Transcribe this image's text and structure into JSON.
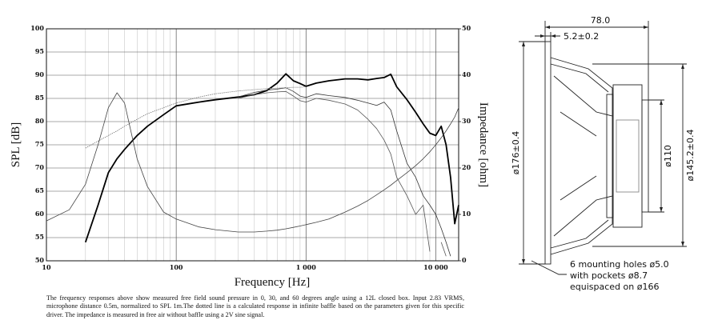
{
  "chart_data": {
    "type": "line",
    "xlabel": "Frequency [Hz]",
    "ylabel": "SPL [dB]",
    "y2label": "Impedance [ohm]",
    "log_x": true,
    "grid": true,
    "xlim": [
      10,
      15000
    ],
    "xticks": [
      10,
      100,
      {
        "value": 1000,
        "label": "1 000"
      },
      {
        "value": 10000,
        "label": "10 000"
      }
    ],
    "xminorticks": [
      20,
      30,
      40,
      50,
      60,
      70,
      80,
      90,
      200,
      300,
      400,
      500,
      600,
      700,
      800,
      900,
      2000,
      3000,
      4000,
      5000,
      6000,
      7000,
      8000,
      9000
    ],
    "ylim": [
      50,
      100
    ],
    "yticks": [
      50,
      55,
      60,
      65,
      70,
      75,
      80,
      85,
      90,
      95,
      100
    ],
    "y2lim": [
      0,
      50
    ],
    "y2ticks": [
      0,
      10,
      20,
      30,
      40,
      50
    ],
    "x": [
      10,
      15,
      20,
      25,
      30,
      35,
      40,
      50,
      60,
      80,
      100,
      150,
      200,
      300,
      400,
      500,
      600,
      700,
      800,
      900,
      1000,
      1200,
      1500,
      2000,
      2500,
      3000,
      3500,
      4000,
      4500,
      5000,
      6000,
      7000,
      8000,
      9000,
      10000,
      11000,
      12000,
      13000,
      14000,
      15000
    ],
    "series": [
      {
        "color": "#000000",
        "width": 1.8,
        "values": [
          null,
          null,
          54,
          62,
          69,
          72,
          74,
          77,
          79,
          81.5,
          83.4,
          84.2,
          84.7,
          85.3,
          85.8,
          86.7,
          88.3,
          90.3,
          88.8,
          88.2,
          87.6,
          88.3,
          88.8,
          89.2,
          89.2,
          89,
          89.3,
          89.5,
          90.2,
          87.5,
          84.7,
          82,
          79.5,
          77.5,
          77,
          79,
          75,
          68,
          58,
          62
        ]
      },
      {
        "color": "#333333",
        "width": 0.8,
        "values": [
          null,
          null,
          null,
          null,
          null,
          null,
          null,
          null,
          null,
          null,
          null,
          null,
          null,
          85.3,
          86.3,
          86.8,
          87,
          87.3,
          86.5,
          85.5,
          85.2,
          86,
          85.6,
          85.2,
          84.6,
          84,
          83.5,
          84.2,
          82.5,
          78,
          71,
          68,
          64,
          62,
          60,
          57,
          54,
          51,
          null,
          null
        ]
      },
      {
        "color": "#555555",
        "width": 0.8,
        "values": [
          null,
          null,
          null,
          null,
          null,
          null,
          null,
          null,
          null,
          null,
          null,
          null,
          null,
          85,
          85.8,
          86.2,
          86.4,
          86.5,
          85.5,
          84.5,
          84.2,
          85,
          84.6,
          83.8,
          82.5,
          80.5,
          78.5,
          76,
          73,
          68,
          64,
          60,
          62,
          52,
          null,
          54,
          51,
          null,
          null,
          null
        ]
      },
      {
        "color": "#777777",
        "width": 0.8,
        "style": "dotted",
        "values": [
          null,
          null,
          74.3,
          75.8,
          77,
          78,
          79,
          80.5,
          81.7,
          83,
          84,
          85.3,
          86,
          86.6,
          86.9,
          87.1,
          87.2,
          87.3,
          87.4,
          87.4,
          87.5,
          null,
          null,
          null,
          null,
          null,
          null,
          null,
          null,
          null,
          null,
          null,
          null,
          null,
          null,
          null,
          null,
          null,
          null,
          null
        ]
      },
      {
        "color": "#444444",
        "width": 0.8,
        "axis": "y2",
        "values": [
          8.6,
          11,
          16.5,
          25,
          33,
          36.2,
          34,
          22,
          16,
          10.5,
          9,
          7.3,
          6.7,
          6.2,
          6.2,
          6.4,
          6.6,
          6.9,
          7.2,
          7.5,
          7.8,
          8.3,
          9,
          10.5,
          11.8,
          13,
          14.2,
          15.3,
          16.3,
          17.3,
          19,
          20.5,
          22,
          23.5,
          25,
          26.5,
          28,
          29.5,
          31,
          33
        ]
      }
    ]
  },
  "drawing": {
    "depth": "78.0",
    "flange": "5.2±0.2",
    "outer_diameter": "ø176±0.4",
    "magnet_diameter": "ø110",
    "basket_diameter": "ø145.2±0.4",
    "mounting_note": [
      "6 mounting holes ø5.0",
      "with pockets ø8.7",
      "equispaced on ø166"
    ]
  },
  "footnote": "The frequency responses above show measured free field sound pressure in 0, 30, and 60 degrees angle using a 12L closed box. Input 2.83 VRMS, microphone distance 0.5m, normalized to SPL 1m.The dotted line is a calculated response in infinite baffle based on the parameters given for this specific driver. The impedance is measured in free air without baffle using a 2V sine signal."
}
